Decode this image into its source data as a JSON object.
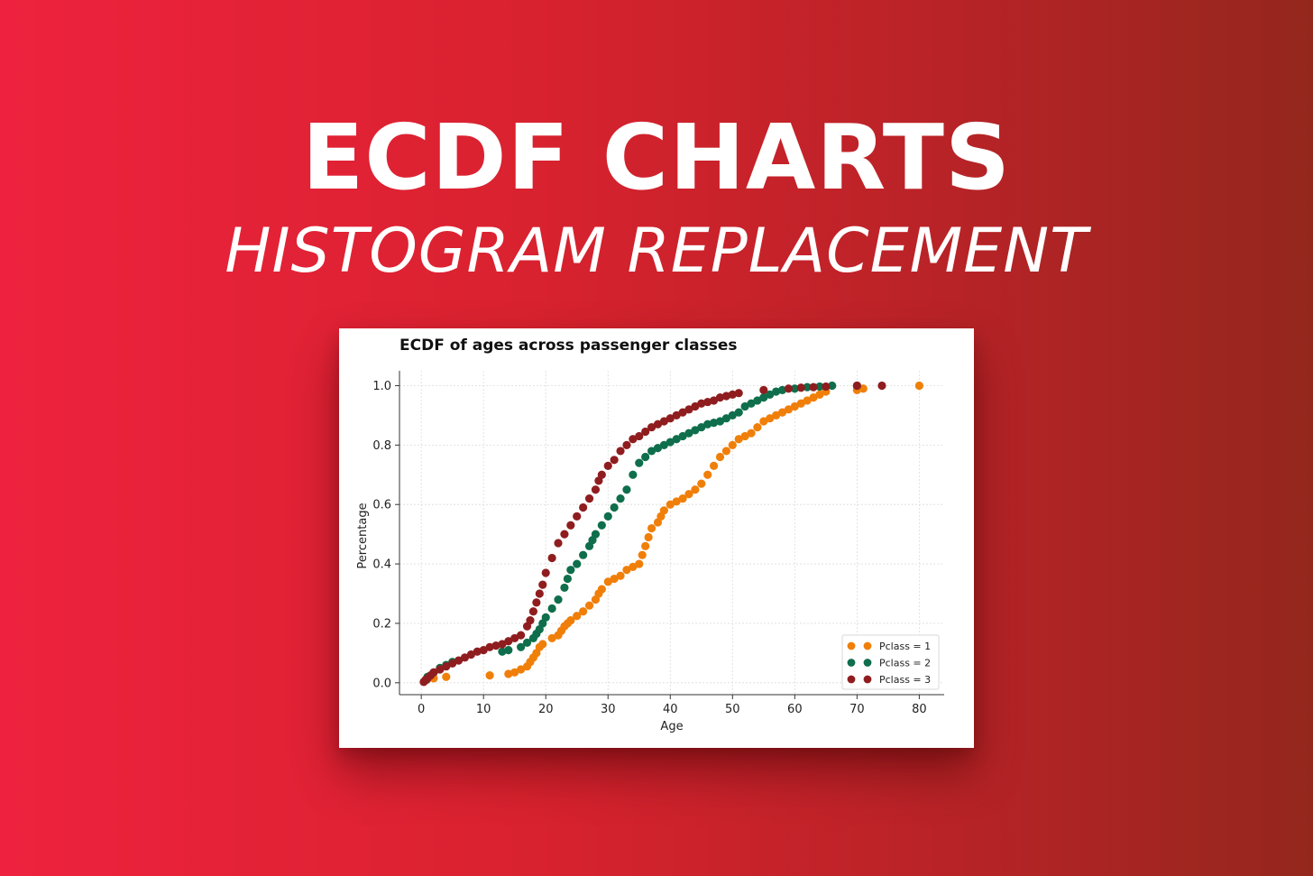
{
  "banner": {
    "title": "ECDF CHARTS",
    "subtitle": "HISTOGRAM REPLACEMENT"
  },
  "colors": {
    "background_start": "#ee223e",
    "background_end": "#94271d",
    "pclass1": "#f07f09",
    "pclass2": "#0f6e4c",
    "pclass3": "#8f1d1f"
  },
  "chart_data": {
    "type": "scatter",
    "title": "ECDF of ages across passenger classes",
    "xlabel": "Age",
    "ylabel": "Percentage",
    "xlim": [
      -3.5,
      84
    ],
    "ylim": [
      -0.04,
      1.05
    ],
    "xticks": [
      "0",
      "10",
      "20",
      "30",
      "40",
      "50",
      "60",
      "70",
      "80"
    ],
    "yticks": [
      "0.0",
      "0.2",
      "0.4",
      "0.6",
      "0.8",
      "1.0"
    ],
    "grid": true,
    "legend_position": "bottom-right",
    "series": [
      {
        "name": "Pclass = 1",
        "color": "#f07f09",
        "x": [
          0.9,
          2,
          4,
          11,
          14,
          15,
          16,
          17,
          17.5,
          18,
          18.5,
          19,
          19.5,
          21,
          22,
          22.5,
          23,
          23.5,
          24,
          25,
          26,
          27,
          28,
          28.5,
          29,
          30,
          31,
          32,
          33,
          34,
          35,
          35.5,
          36,
          36.5,
          37,
          38,
          38.5,
          39,
          40,
          41,
          42,
          43,
          44,
          45,
          46,
          47,
          48,
          49,
          50,
          51,
          52,
          53,
          54,
          55,
          56,
          57,
          58,
          59,
          60,
          61,
          62,
          63,
          64,
          65,
          70,
          71,
          80
        ],
        "y": [
          0.01,
          0.015,
          0.02,
          0.025,
          0.03,
          0.035,
          0.045,
          0.055,
          0.07,
          0.085,
          0.1,
          0.12,
          0.13,
          0.15,
          0.16,
          0.175,
          0.19,
          0.2,
          0.21,
          0.225,
          0.24,
          0.26,
          0.28,
          0.3,
          0.315,
          0.34,
          0.35,
          0.36,
          0.38,
          0.39,
          0.4,
          0.43,
          0.46,
          0.49,
          0.52,
          0.54,
          0.56,
          0.58,
          0.6,
          0.61,
          0.62,
          0.635,
          0.65,
          0.67,
          0.7,
          0.73,
          0.76,
          0.78,
          0.8,
          0.82,
          0.83,
          0.84,
          0.86,
          0.88,
          0.89,
          0.9,
          0.91,
          0.92,
          0.93,
          0.94,
          0.95,
          0.96,
          0.97,
          0.98,
          0.985,
          0.99,
          1.0
        ]
      },
      {
        "name": "Pclass = 2",
        "color": "#0f6e4c",
        "x": [
          0.8,
          1,
          2,
          3,
          4,
          5,
          13,
          14,
          16,
          17,
          18,
          18.5,
          19,
          19.5,
          20,
          21,
          22,
          23,
          23.5,
          24,
          25,
          26,
          27,
          27.5,
          28,
          29,
          30,
          31,
          32,
          33,
          34,
          35,
          36,
          37,
          38,
          39,
          40,
          41,
          42,
          43,
          44,
          45,
          46,
          47,
          48,
          49,
          50,
          51,
          52,
          53,
          54,
          55,
          56,
          57,
          58,
          60,
          62,
          64,
          66,
          70
        ],
        "y": [
          0.01,
          0.02,
          0.035,
          0.05,
          0.06,
          0.07,
          0.105,
          0.11,
          0.12,
          0.135,
          0.15,
          0.165,
          0.18,
          0.2,
          0.22,
          0.25,
          0.28,
          0.32,
          0.35,
          0.38,
          0.4,
          0.43,
          0.46,
          0.48,
          0.5,
          0.53,
          0.56,
          0.59,
          0.62,
          0.65,
          0.7,
          0.74,
          0.76,
          0.78,
          0.79,
          0.8,
          0.81,
          0.82,
          0.83,
          0.84,
          0.85,
          0.86,
          0.87,
          0.875,
          0.88,
          0.89,
          0.9,
          0.91,
          0.93,
          0.94,
          0.95,
          0.96,
          0.97,
          0.98,
          0.985,
          0.99,
          0.995,
          0.997,
          1.0,
          1.0
        ]
      },
      {
        "name": "Pclass = 3",
        "color": "#8f1d1f",
        "x": [
          0.4,
          0.7,
          1,
          1.5,
          2,
          3,
          4,
          5,
          6,
          7,
          8,
          9,
          10,
          11,
          12,
          13,
          14,
          15,
          16,
          17,
          17.5,
          18,
          18.5,
          19,
          19.5,
          20,
          21,
          22,
          23,
          24,
          25,
          26,
          27,
          28,
          28.5,
          29,
          30,
          31,
          32,
          33,
          34,
          35,
          36,
          37,
          38,
          39,
          40,
          41,
          42,
          43,
          44,
          45,
          46,
          47,
          48,
          49,
          50,
          51,
          55,
          59,
          61,
          63,
          65,
          70,
          74
        ],
        "y": [
          0.003,
          0.01,
          0.015,
          0.025,
          0.035,
          0.045,
          0.055,
          0.065,
          0.075,
          0.085,
          0.095,
          0.105,
          0.11,
          0.12,
          0.125,
          0.13,
          0.14,
          0.15,
          0.16,
          0.19,
          0.21,
          0.24,
          0.27,
          0.3,
          0.33,
          0.37,
          0.42,
          0.47,
          0.5,
          0.53,
          0.56,
          0.59,
          0.62,
          0.65,
          0.68,
          0.7,
          0.73,
          0.75,
          0.78,
          0.8,
          0.82,
          0.83,
          0.845,
          0.86,
          0.87,
          0.88,
          0.89,
          0.9,
          0.91,
          0.92,
          0.93,
          0.94,
          0.945,
          0.95,
          0.96,
          0.965,
          0.97,
          0.975,
          0.985,
          0.99,
          0.993,
          0.995,
          0.997,
          1.0,
          1.0
        ]
      }
    ]
  }
}
